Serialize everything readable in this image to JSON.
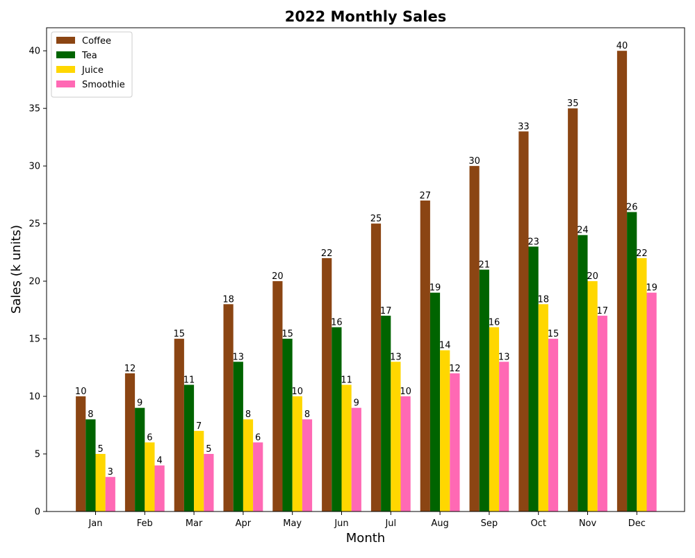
{
  "chart_data": {
    "type": "bar",
    "title": "2022 Monthly Sales",
    "xlabel": "Month",
    "ylabel": "Sales (k units)",
    "categories": [
      "Jan",
      "Feb",
      "Mar",
      "Apr",
      "May",
      "Jun",
      "Jul",
      "Aug",
      "Sep",
      "Oct",
      "Nov",
      "Dec"
    ],
    "ylim": [
      0,
      42
    ],
    "yticks": [
      0,
      5,
      10,
      15,
      20,
      25,
      30,
      35,
      40
    ],
    "grid": false,
    "legend_position": "top-left",
    "series": [
      {
        "name": "Coffee",
        "color": "#8B4513",
        "values": [
          10,
          12,
          15,
          18,
          20,
          22,
          25,
          27,
          30,
          33,
          35,
          40
        ]
      },
      {
        "name": "Tea",
        "color": "#006400",
        "values": [
          8,
          9,
          11,
          13,
          15,
          16,
          17,
          19,
          21,
          23,
          24,
          26
        ]
      },
      {
        "name": "Juice",
        "color": "#FFD700",
        "values": [
          5,
          6,
          7,
          8,
          10,
          11,
          13,
          14,
          16,
          18,
          20,
          22
        ]
      },
      {
        "name": "Smoothie",
        "color": "#FF69B4",
        "values": [
          3,
          4,
          5,
          6,
          8,
          9,
          10,
          12,
          13,
          15,
          17,
          19
        ]
      }
    ]
  }
}
